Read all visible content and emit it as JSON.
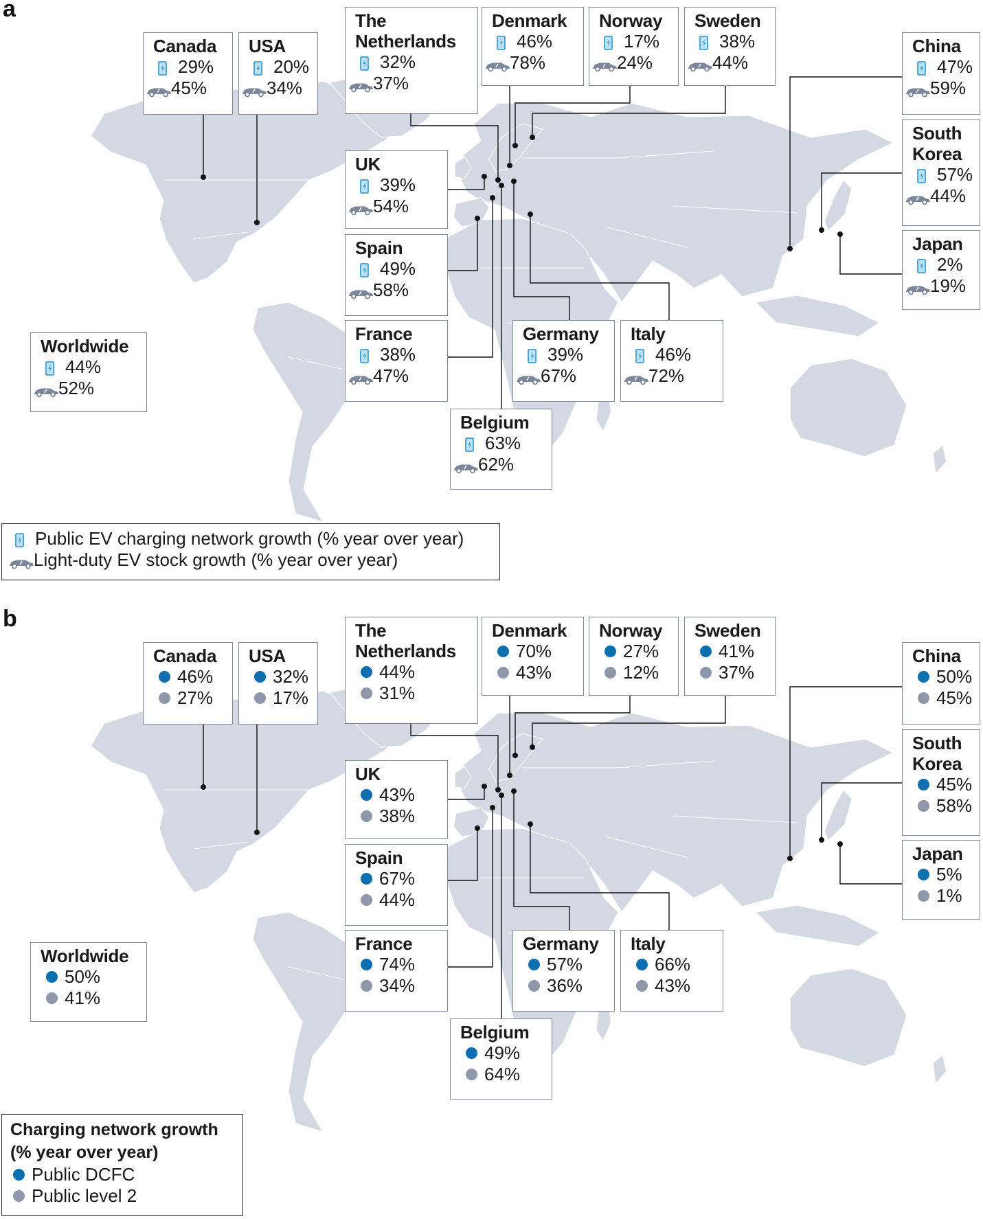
{
  "colors": {
    "land": "#d3d8e3",
    "charger_icon": "#3c9fd8",
    "car_icon": "#7d879a",
    "dcfc": "#0d6fb0",
    "level2": "#8f98ab",
    "leader": "#111111"
  },
  "icons": {
    "charger": "ev-charger-icon",
    "car": "car-icon",
    "dcfc": "blue-dot-icon",
    "level2": "grey-dot-icon"
  },
  "panel_a": {
    "letter": "a",
    "countries": {
      "canada": {
        "name": "Canada",
        "v1": "29%",
        "v2": "45%"
      },
      "usa": {
        "name": "USA",
        "v1": "20%",
        "v2": "34%"
      },
      "netherlands": {
        "name1": "The",
        "name2": "Netherlands",
        "v1": "32%",
        "v2": "37%"
      },
      "denmark": {
        "name": "Denmark",
        "v1": "46%",
        "v2": "78%"
      },
      "norway": {
        "name": "Norway",
        "v1": "17%",
        "v2": "24%"
      },
      "sweden": {
        "name": "Sweden",
        "v1": "38%",
        "v2": "44%"
      },
      "china": {
        "name": "China",
        "v1": "47%",
        "v2": "59%"
      },
      "south_korea": {
        "name1": "South",
        "name2": "Korea",
        "v1": "57%",
        "v2": "44%"
      },
      "japan": {
        "name": "Japan",
        "v1": "2%",
        "v2": "19%"
      },
      "uk": {
        "name": "UK",
        "v1": "39%",
        "v2": "54%"
      },
      "spain": {
        "name": "Spain",
        "v1": "49%",
        "v2": "58%"
      },
      "france": {
        "name": "France",
        "v1": "38%",
        "v2": "47%"
      },
      "germany": {
        "name": "Germany",
        "v1": "39%",
        "v2": "67%"
      },
      "italy": {
        "name": "Italy",
        "v1": "46%",
        "v2": "72%"
      },
      "belgium": {
        "name": "Belgium",
        "v1": "63%",
        "v2": "62%"
      },
      "worldwide": {
        "name": "Worldwide",
        "v1": "44%",
        "v2": "52%"
      }
    },
    "legend": {
      "charging": "Public EV charging network growth (% year over year)",
      "stock": "Light-duty EV stock growth (% year over year)"
    }
  },
  "panel_b": {
    "letter": "b",
    "countries": {
      "canada": {
        "name": "Canada",
        "v1": "46%",
        "v2": "27%"
      },
      "usa": {
        "name": "USA",
        "v1": "32%",
        "v2": "17%"
      },
      "netherlands": {
        "name1": "The",
        "name2": "Netherlands",
        "v1": "44%",
        "v2": "31%"
      },
      "denmark": {
        "name": "Denmark",
        "v1": "70%",
        "v2": "43%"
      },
      "norway": {
        "name": "Norway",
        "v1": "27%",
        "v2": "12%"
      },
      "sweden": {
        "name": "Sweden",
        "v1": "41%",
        "v2": "37%"
      },
      "china": {
        "name": "China",
        "v1": "50%",
        "v2": "45%"
      },
      "south_korea": {
        "name1": "South",
        "name2": "Korea",
        "v1": "45%",
        "v2": "58%"
      },
      "japan": {
        "name": "Japan",
        "v1": "5%",
        "v2": "1%"
      },
      "uk": {
        "name": "UK",
        "v1": "43%",
        "v2": "38%"
      },
      "spain": {
        "name": "Spain",
        "v1": "67%",
        "v2": "44%"
      },
      "france": {
        "name": "France",
        "v1": "74%",
        "v2": "34%"
      },
      "germany": {
        "name": "Germany",
        "v1": "57%",
        "v2": "36%"
      },
      "italy": {
        "name": "Italy",
        "v1": "66%",
        "v2": "43%"
      },
      "belgium": {
        "name": "Belgium",
        "v1": "49%",
        "v2": "64%"
      },
      "worldwide": {
        "name": "Worldwide",
        "v1": "50%",
        "v2": "41%"
      }
    },
    "legend": {
      "title1": "Charging network growth",
      "title2": "(% year over year)",
      "dcfc": "Public DCFC",
      "level2": "Public level 2"
    }
  }
}
